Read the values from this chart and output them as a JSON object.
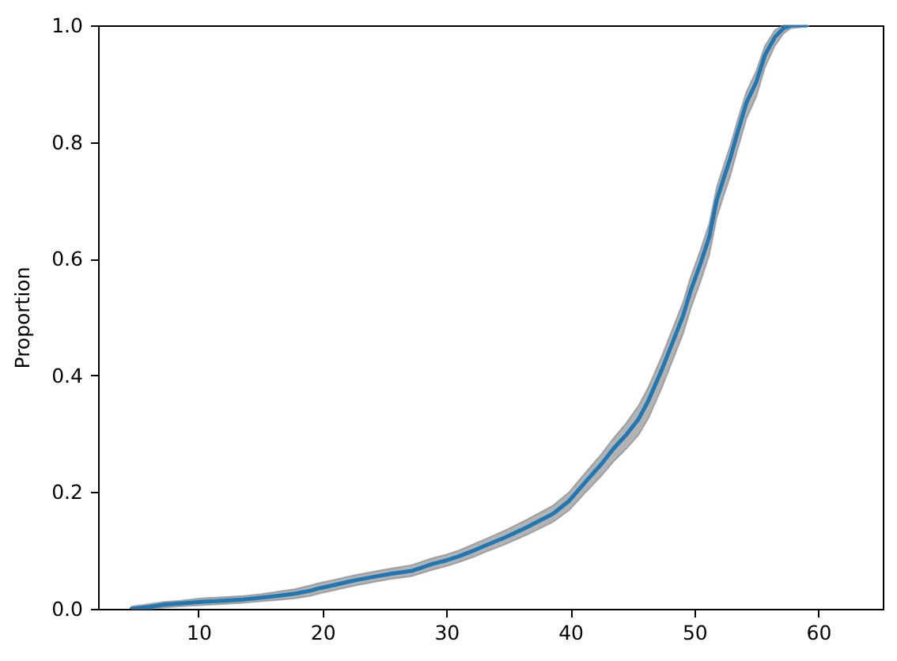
{
  "chart_data": {
    "type": "line",
    "ylabel": "Proportion",
    "x": [
      4.6,
      6.0,
      7.2,
      8.5,
      10.2,
      12.0,
      13.6,
      15.0,
      16.3,
      17.8,
      19.0,
      19.9,
      21.0,
      22.0,
      22.9,
      24.2,
      25.5,
      27.2,
      28.9,
      30.0,
      31.0,
      32.1,
      33.1,
      34.8,
      36.5,
      38.6,
      39.9,
      41.2,
      42.5,
      43.5,
      44.5,
      45.5,
      46.3,
      47.4,
      48.4,
      49.1,
      49.7,
      50.5,
      51.2,
      51.8,
      52.4,
      52.9,
      53.4,
      54.2,
      55.0,
      55.7,
      56.5,
      57.2,
      57.8,
      59.1
    ],
    "series": [
      {
        "color": "#1f77b4",
        "values": [
          0,
          0.003,
          0.007,
          0.009,
          0.012,
          0.014,
          0.016,
          0.019,
          0.022,
          0.026,
          0.031,
          0.036,
          0.041,
          0.046,
          0.05,
          0.055,
          0.06,
          0.065,
          0.077,
          0.083,
          0.09,
          0.099,
          0.108,
          0.123,
          0.14,
          0.163,
          0.185,
          0.217,
          0.248,
          0.275,
          0.298,
          0.325,
          0.357,
          0.411,
          0.465,
          0.503,
          0.545,
          0.592,
          0.637,
          0.7,
          0.74,
          0.772,
          0.81,
          0.867,
          0.903,
          0.949,
          0.98,
          0.995,
          1.0,
          1.0
        ],
        "lower": [
          0,
          0,
          0.002,
          0.004,
          0.006,
          0.008,
          0.01,
          0.013,
          0.015,
          0.018,
          0.022,
          0.027,
          0.032,
          0.037,
          0.041,
          0.046,
          0.051,
          0.056,
          0.067,
          0.073,
          0.08,
          0.088,
          0.097,
          0.111,
          0.127,
          0.149,
          0.169,
          0.199,
          0.228,
          0.253,
          0.274,
          0.298,
          0.327,
          0.38,
          0.434,
          0.472,
          0.514,
          0.561,
          0.606,
          0.67,
          0.71,
          0.742,
          0.781,
          0.84,
          0.878,
          0.928,
          0.965,
          0.986,
          0.995,
          0.998
        ],
        "upper": [
          0.004,
          0.008,
          0.012,
          0.014,
          0.018,
          0.02,
          0.022,
          0.025,
          0.029,
          0.034,
          0.04,
          0.045,
          0.05,
          0.055,
          0.059,
          0.064,
          0.069,
          0.075,
          0.087,
          0.093,
          0.1,
          0.11,
          0.119,
          0.135,
          0.153,
          0.177,
          0.2,
          0.233,
          0.265,
          0.293,
          0.318,
          0.348,
          0.38,
          0.434,
          0.488,
          0.526,
          0.568,
          0.615,
          0.66,
          0.722,
          0.762,
          0.794,
          0.831,
          0.886,
          0.922,
          0.965,
          0.992,
          1.0,
          1.0,
          1.0
        ]
      }
    ],
    "xlim": [
      1.9,
      65.2
    ],
    "ylim": [
      0,
      1
    ],
    "xticks": [
      10,
      20,
      30,
      40,
      50,
      60
    ],
    "yticks": [
      {
        "value": 0,
        "label": "0.0"
      },
      0.2,
      0.4,
      0.6,
      0.8,
      {
        "value": 1,
        "label": "1.0"
      }
    ],
    "grid": false,
    "legend": false
  }
}
